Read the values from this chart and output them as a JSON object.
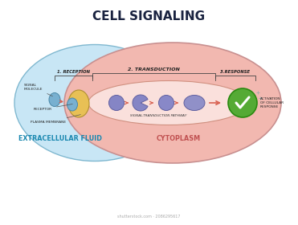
{
  "title": "CELL SIGNALING",
  "title_fontsize": 11,
  "title_color": "#1a2340",
  "title_weight": "bold",
  "bg_color": "#ffffff",
  "extracellular_color": "#c8e6f5",
  "cytoplasm_color": "#f2b8b0",
  "tube_color": "#fae0dc",
  "stage1_label": "1. RECEPTION",
  "stage2_label": "2. TRANSDUCTION",
  "stage3_label": "3.RESPONSE",
  "signal_molecule_label": "SIGNAL\nMOLECULE",
  "receptor_label": "RECEPTOR",
  "plasma_membrane_label": "PLASMA MEMBRANE",
  "pathway_label": "SIGNAL-TRANSDUCTION PATHWAY",
  "activation_label": "ACTIVATION\nOF CELLULAR\nRESPONSE",
  "extracellular_fluid_label": "EXTRACELLULAR FLUID",
  "cytoplasm_label": "CYTOPLASM",
  "arrow_color": "#d86050",
  "label_color": "#2a2a2a",
  "green_check_color": "#55aa35",
  "molecule_blue": "#78b0d0",
  "receptor_yellow": "#e8c055",
  "signal_purple": "#8080c0",
  "outline_extracell": "#80b8d0",
  "outline_cyto": "#c89090",
  "outline_tube": "#d09080",
  "watermark": "shutterstock.com · 2086295617"
}
